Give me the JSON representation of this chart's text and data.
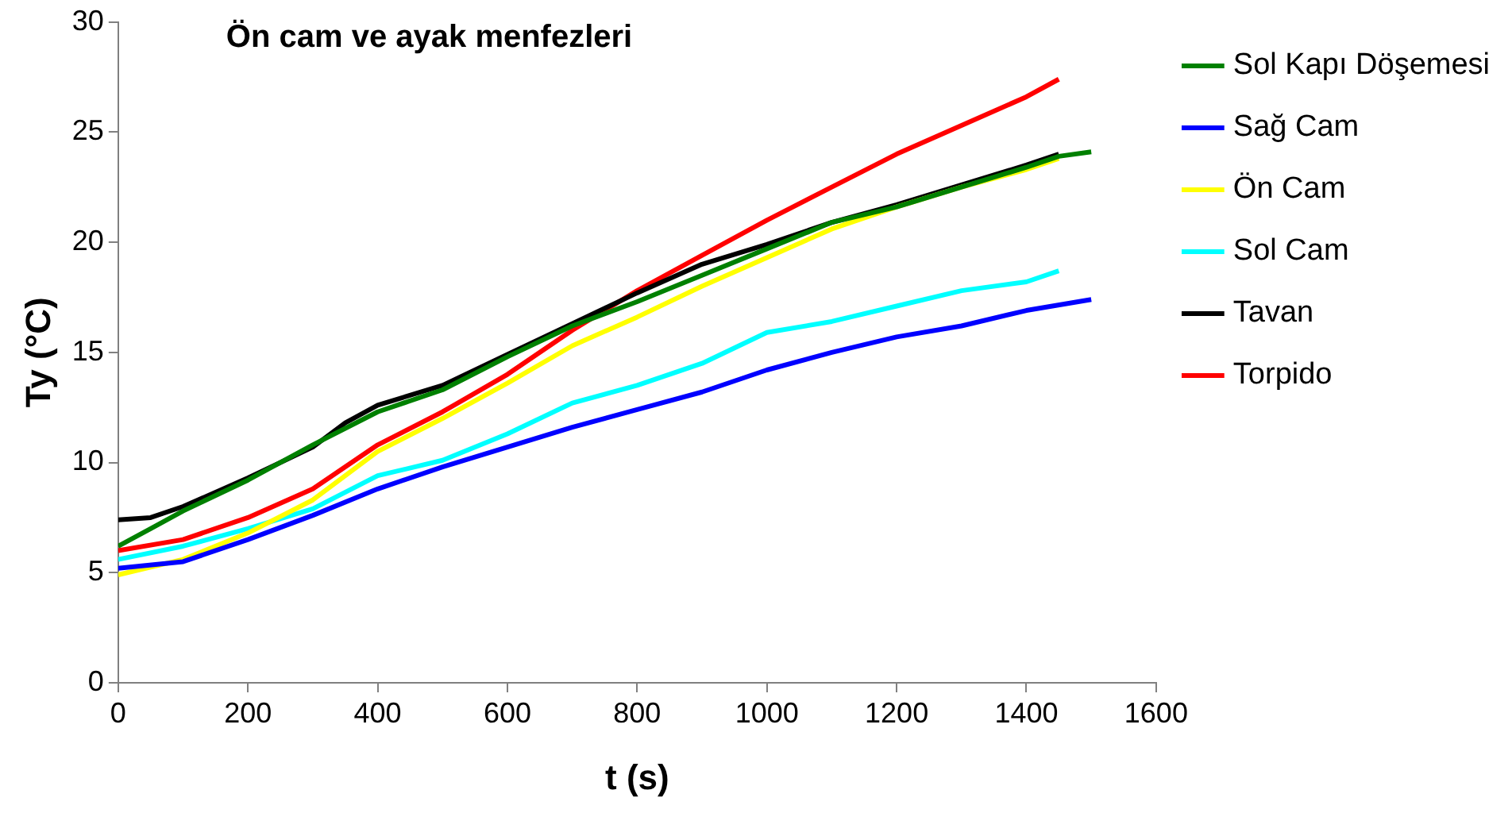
{
  "chart_data": {
    "type": "line",
    "title": "Ön cam ve ayak menfezleri",
    "xlabel": "t (s)",
    "ylabel": "Ty (°C)",
    "xlim": [
      0,
      1600
    ],
    "xticks": [
      0,
      200,
      400,
      600,
      800,
      1000,
      1200,
      1400,
      1600
    ],
    "ylim": [
      0,
      30
    ],
    "yticks": [
      0,
      5,
      10,
      15,
      20,
      25,
      30
    ],
    "grid": false,
    "legend": "right",
    "marker": "none",
    "line_style": "solid",
    "series": [
      {
        "name": "Sol Kapı Döşemesi",
        "color": "#008000",
        "x": [
          0,
          50,
          100,
          200,
          300,
          400,
          500,
          600,
          700,
          800,
          900,
          1000,
          1100,
          1200,
          1300,
          1400,
          1450,
          1500
        ],
        "values": [
          6.2,
          7,
          7.8,
          9.2,
          10.8,
          12.3,
          13.3,
          14.8,
          16.2,
          17.3,
          18.5,
          19.7,
          20.9,
          21.6,
          22.5,
          23.4,
          23.9,
          24.1
        ]
      },
      {
        "name": "Sağ Cam",
        "color": "#0000ff",
        "x": [
          0,
          100,
          200,
          300,
          400,
          500,
          600,
          700,
          800,
          900,
          1000,
          1100,
          1200,
          1300,
          1400,
          1500
        ],
        "values": [
          5.2,
          5.5,
          6.5,
          7.6,
          8.8,
          9.8,
          10.7,
          11.6,
          12.4,
          13.2,
          14.2,
          15,
          15.7,
          16.2,
          16.9,
          17.4
        ]
      },
      {
        "name": "Ön Cam",
        "color": "#ffff00",
        "x": [
          0,
          100,
          200,
          300,
          400,
          500,
          600,
          700,
          800,
          900,
          1000,
          1100,
          1200,
          1300,
          1400,
          1450
        ],
        "values": [
          4.9,
          5.6,
          6.8,
          8.3,
          10.5,
          12,
          13.6,
          15.3,
          16.6,
          18,
          19.3,
          20.6,
          21.6,
          22.5,
          23.3,
          23.8
        ]
      },
      {
        "name": "Sol Cam",
        "color": "#00ffff",
        "x": [
          0,
          100,
          200,
          300,
          400,
          500,
          600,
          700,
          800,
          900,
          1000,
          1100,
          1200,
          1300,
          1400,
          1450
        ],
        "values": [
          5.6,
          6.2,
          7,
          7.9,
          9.4,
          10.1,
          11.3,
          12.7,
          13.5,
          14.5,
          15.9,
          16.4,
          17.1,
          17.8,
          18.2,
          18.7
        ]
      },
      {
        "name": "Tavan",
        "color": "#000000",
        "x": [
          0,
          50,
          100,
          200,
          300,
          350,
          400,
          500,
          600,
          700,
          800,
          900,
          1000,
          1100,
          1200,
          1300,
          1400,
          1450
        ],
        "values": [
          7.4,
          7.5,
          8,
          9.3,
          10.7,
          11.8,
          12.6,
          13.5,
          14.9,
          16.3,
          17.7,
          19,
          19.9,
          20.9,
          21.7,
          22.6,
          23.5,
          24
        ]
      },
      {
        "name": "Torpido",
        "color": "#ff0000",
        "x": [
          0,
          100,
          200,
          300,
          400,
          500,
          600,
          700,
          800,
          900,
          1000,
          1100,
          1200,
          1300,
          1400,
          1450
        ],
        "values": [
          6,
          6.5,
          7.5,
          8.8,
          10.8,
          12.3,
          14,
          16,
          17.8,
          19.4,
          21,
          22.5,
          24,
          25.3,
          26.6,
          27.4
        ]
      }
    ]
  }
}
